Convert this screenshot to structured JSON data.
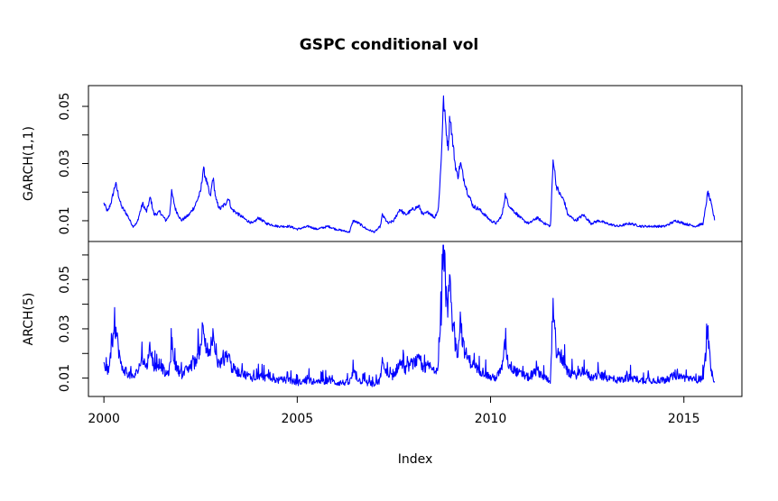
{
  "chart_data": {
    "type": "line",
    "title": "GSPC conditional vol",
    "xlabel": "Index",
    "xlim": [
      1999.6,
      2016.5
    ],
    "x_ticks": [
      2000,
      2005,
      2010,
      2015
    ],
    "x_tick_labels": [
      "2000",
      "2005",
      "2010",
      "2015"
    ],
    "color": "#0000ff",
    "grid": false,
    "panels": [
      {
        "name": "garch",
        "ylabel": "GARCH(1,1)",
        "ylim": [
          0.004,
          0.056
        ],
        "y_ticks": [
          0.01,
          0.02,
          0.03,
          0.04,
          0.05
        ],
        "y_tick_labels": [
          "0.01",
          "",
          "0.03",
          "",
          "0.05"
        ],
        "anchors": [
          [
            2000.0,
            0.016
          ],
          [
            2000.1,
            0.013
          ],
          [
            2000.2,
            0.017
          ],
          [
            2000.3,
            0.023
          ],
          [
            2000.45,
            0.015
          ],
          [
            2000.6,
            0.012
          ],
          [
            2000.75,
            0.008
          ],
          [
            2000.85,
            0.009
          ],
          [
            2001.0,
            0.016
          ],
          [
            2001.1,
            0.013
          ],
          [
            2001.2,
            0.018
          ],
          [
            2001.3,
            0.012
          ],
          [
            2001.45,
            0.013
          ],
          [
            2001.6,
            0.01
          ],
          [
            2001.7,
            0.012
          ],
          [
            2001.75,
            0.02
          ],
          [
            2001.85,
            0.014
          ],
          [
            2002.0,
            0.01
          ],
          [
            2002.2,
            0.012
          ],
          [
            2002.35,
            0.015
          ],
          [
            2002.5,
            0.02
          ],
          [
            2002.57,
            0.028
          ],
          [
            2002.65,
            0.024
          ],
          [
            2002.75,
            0.018
          ],
          [
            2002.82,
            0.025
          ],
          [
            2002.9,
            0.017
          ],
          [
            2003.0,
            0.014
          ],
          [
            2003.15,
            0.016
          ],
          [
            2003.22,
            0.018
          ],
          [
            2003.3,
            0.014
          ],
          [
            2003.5,
            0.012
          ],
          [
            2003.7,
            0.01
          ],
          [
            2003.85,
            0.009
          ],
          [
            2004.0,
            0.011
          ],
          [
            2004.2,
            0.009
          ],
          [
            2004.5,
            0.008
          ],
          [
            2004.8,
            0.008
          ],
          [
            2005.0,
            0.007
          ],
          [
            2005.3,
            0.008
          ],
          [
            2005.5,
            0.007
          ],
          [
            2005.8,
            0.008
          ],
          [
            2006.0,
            0.007
          ],
          [
            2006.35,
            0.006
          ],
          [
            2006.45,
            0.01
          ],
          [
            2006.6,
            0.009
          ],
          [
            2006.8,
            0.007
          ],
          [
            2007.0,
            0.006
          ],
          [
            2007.15,
            0.008
          ],
          [
            2007.2,
            0.012
          ],
          [
            2007.35,
            0.009
          ],
          [
            2007.5,
            0.01
          ],
          [
            2007.65,
            0.014
          ],
          [
            2007.8,
            0.012
          ],
          [
            2007.9,
            0.013
          ],
          [
            2008.0,
            0.014
          ],
          [
            2008.15,
            0.015
          ],
          [
            2008.25,
            0.012
          ],
          [
            2008.4,
            0.013
          ],
          [
            2008.55,
            0.011
          ],
          [
            2008.65,
            0.014
          ],
          [
            2008.72,
            0.03
          ],
          [
            2008.78,
            0.052
          ],
          [
            2008.83,
            0.045
          ],
          [
            2008.9,
            0.035
          ],
          [
            2008.95,
            0.047
          ],
          [
            2009.0,
            0.04
          ],
          [
            2009.08,
            0.03
          ],
          [
            2009.15,
            0.025
          ],
          [
            2009.22,
            0.03
          ],
          [
            2009.3,
            0.025
          ],
          [
            2009.4,
            0.02
          ],
          [
            2009.55,
            0.015
          ],
          [
            2009.7,
            0.014
          ],
          [
            2009.85,
            0.012
          ],
          [
            2010.0,
            0.01
          ],
          [
            2010.15,
            0.009
          ],
          [
            2010.3,
            0.012
          ],
          [
            2010.38,
            0.019
          ],
          [
            2010.45,
            0.016
          ],
          [
            2010.55,
            0.014
          ],
          [
            2010.7,
            0.012
          ],
          [
            2010.85,
            0.01
          ],
          [
            2011.0,
            0.009
          ],
          [
            2011.2,
            0.011
          ],
          [
            2011.4,
            0.009
          ],
          [
            2011.55,
            0.008
          ],
          [
            2011.62,
            0.032
          ],
          [
            2011.7,
            0.022
          ],
          [
            2011.8,
            0.019
          ],
          [
            2011.9,
            0.017
          ],
          [
            2012.0,
            0.012
          ],
          [
            2012.2,
            0.01
          ],
          [
            2012.4,
            0.012
          ],
          [
            2012.6,
            0.009
          ],
          [
            2012.8,
            0.01
          ],
          [
            2013.0,
            0.009
          ],
          [
            2013.3,
            0.008
          ],
          [
            2013.6,
            0.009
          ],
          [
            2013.9,
            0.008
          ],
          [
            2014.2,
            0.008
          ],
          [
            2014.5,
            0.008
          ],
          [
            2014.8,
            0.01
          ],
          [
            2015.0,
            0.009
          ],
          [
            2015.3,
            0.008
          ],
          [
            2015.5,
            0.009
          ],
          [
            2015.62,
            0.02
          ],
          [
            2015.7,
            0.016
          ],
          [
            2015.8,
            0.01
          ]
        ]
      },
      {
        "name": "arch",
        "ylabel": "ARCH(5)",
        "ylim": [
          0.004,
          0.064
        ],
        "y_ticks": [
          0.01,
          0.02,
          0.03,
          0.04,
          0.05,
          0.06
        ],
        "y_tick_labels": [
          "0.01",
          "",
          "0.03",
          "",
          "0.05",
          ""
        ],
        "anchors": [
          [
            2000.0,
            0.016
          ],
          [
            2000.1,
            0.012
          ],
          [
            2000.2,
            0.02
          ],
          [
            2000.3,
            0.03
          ],
          [
            2000.45,
            0.014
          ],
          [
            2000.6,
            0.012
          ],
          [
            2000.75,
            0.01
          ],
          [
            2000.85,
            0.012
          ],
          [
            2001.0,
            0.018
          ],
          [
            2001.1,
            0.014
          ],
          [
            2001.2,
            0.022
          ],
          [
            2001.3,
            0.014
          ],
          [
            2001.45,
            0.016
          ],
          [
            2001.6,
            0.011
          ],
          [
            2001.7,
            0.013
          ],
          [
            2001.75,
            0.024
          ],
          [
            2001.85,
            0.015
          ],
          [
            2002.0,
            0.011
          ],
          [
            2002.2,
            0.014
          ],
          [
            2002.35,
            0.016
          ],
          [
            2002.5,
            0.022
          ],
          [
            2002.57,
            0.033
          ],
          [
            2002.65,
            0.022
          ],
          [
            2002.75,
            0.018
          ],
          [
            2002.82,
            0.026
          ],
          [
            2002.9,
            0.017
          ],
          [
            2003.0,
            0.015
          ],
          [
            2003.15,
            0.018
          ],
          [
            2003.22,
            0.02
          ],
          [
            2003.3,
            0.014
          ],
          [
            2003.5,
            0.012
          ],
          [
            2003.7,
            0.011
          ],
          [
            2003.85,
            0.01
          ],
          [
            2004.0,
            0.011
          ],
          [
            2004.2,
            0.01
          ],
          [
            2004.5,
            0.009
          ],
          [
            2004.8,
            0.009
          ],
          [
            2005.0,
            0.008
          ],
          [
            2005.3,
            0.009
          ],
          [
            2005.5,
            0.008
          ],
          [
            2005.8,
            0.009
          ],
          [
            2006.0,
            0.008
          ],
          [
            2006.35,
            0.008
          ],
          [
            2006.45,
            0.012
          ],
          [
            2006.6,
            0.009
          ],
          [
            2006.8,
            0.008
          ],
          [
            2007.0,
            0.007
          ],
          [
            2007.15,
            0.009
          ],
          [
            2007.2,
            0.016
          ],
          [
            2007.35,
            0.01
          ],
          [
            2007.5,
            0.011
          ],
          [
            2007.65,
            0.016
          ],
          [
            2007.8,
            0.013
          ],
          [
            2007.9,
            0.015
          ],
          [
            2008.0,
            0.016
          ],
          [
            2008.15,
            0.017
          ],
          [
            2008.25,
            0.013
          ],
          [
            2008.4,
            0.015
          ],
          [
            2008.55,
            0.012
          ],
          [
            2008.65,
            0.016
          ],
          [
            2008.72,
            0.034
          ],
          [
            2008.78,
            0.062
          ],
          [
            2008.83,
            0.046
          ],
          [
            2008.9,
            0.036
          ],
          [
            2008.95,
            0.055
          ],
          [
            2009.0,
            0.035
          ],
          [
            2009.08,
            0.024
          ],
          [
            2009.15,
            0.02
          ],
          [
            2009.22,
            0.034
          ],
          [
            2009.3,
            0.022
          ],
          [
            2009.4,
            0.018
          ],
          [
            2009.55,
            0.015
          ],
          [
            2009.7,
            0.013
          ],
          [
            2009.85,
            0.012
          ],
          [
            2010.0,
            0.01
          ],
          [
            2010.15,
            0.01
          ],
          [
            2010.3,
            0.014
          ],
          [
            2010.38,
            0.024
          ],
          [
            2010.45,
            0.016
          ],
          [
            2010.55,
            0.014
          ],
          [
            2010.7,
            0.012
          ],
          [
            2010.85,
            0.011
          ],
          [
            2011.0,
            0.01
          ],
          [
            2011.2,
            0.013
          ],
          [
            2011.4,
            0.01
          ],
          [
            2011.55,
            0.009
          ],
          [
            2011.62,
            0.042
          ],
          [
            2011.7,
            0.02
          ],
          [
            2011.8,
            0.018
          ],
          [
            2011.9,
            0.016
          ],
          [
            2012.0,
            0.012
          ],
          [
            2012.2,
            0.011
          ],
          [
            2012.4,
            0.013
          ],
          [
            2012.6,
            0.01
          ],
          [
            2012.8,
            0.011
          ],
          [
            2013.0,
            0.01
          ],
          [
            2013.3,
            0.009
          ],
          [
            2013.6,
            0.01
          ],
          [
            2013.9,
            0.009
          ],
          [
            2014.2,
            0.009
          ],
          [
            2014.5,
            0.009
          ],
          [
            2014.8,
            0.011
          ],
          [
            2015.0,
            0.01
          ],
          [
            2015.3,
            0.009
          ],
          [
            2015.5,
            0.01
          ],
          [
            2015.62,
            0.028
          ],
          [
            2015.7,
            0.012
          ],
          [
            2015.8,
            0.009
          ]
        ]
      }
    ]
  }
}
